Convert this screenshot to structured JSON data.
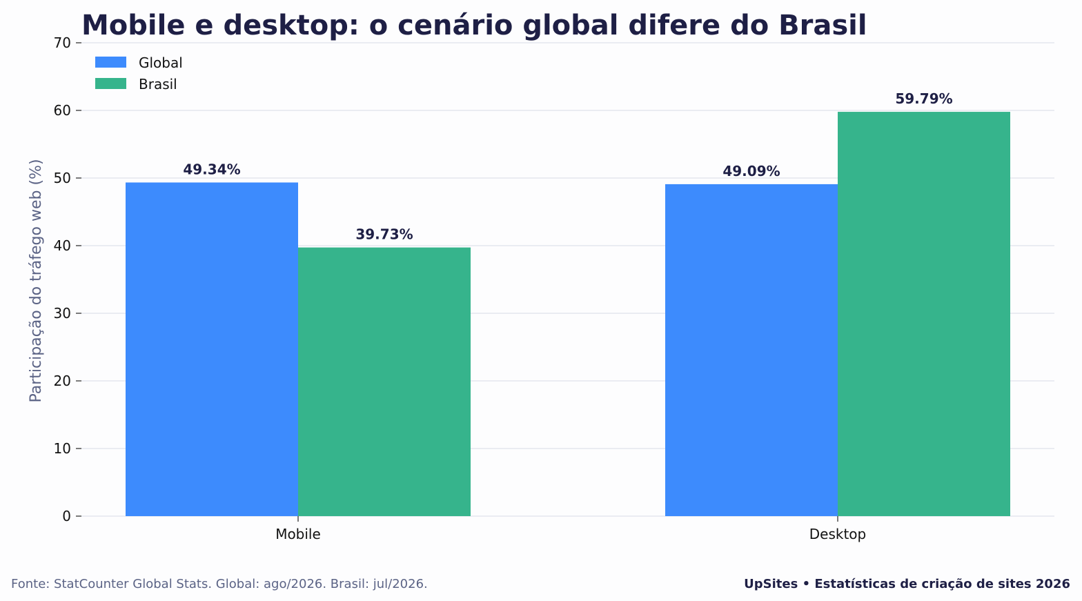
{
  "colors": {
    "background": "#fdfdfe",
    "global": "#3d8bfd",
    "brasil": "#36b48c",
    "grid": "#e3e6ee",
    "title": "#1e1f45",
    "muted": "#5b6385"
  },
  "chart_data": {
    "type": "bar",
    "title": "Mobile e desktop: o cenário global difere do Brasil",
    "xlabel": "",
    "ylabel": "Participação do tráfego web (%)",
    "categories": [
      "Mobile",
      "Desktop"
    ],
    "series": [
      {
        "name": "Global",
        "values": [
          49.34,
          49.09
        ],
        "labels": [
          "49.34%",
          "49.09%"
        ]
      },
      {
        "name": "Brasil",
        "values": [
          39.73,
          59.79
        ],
        "labels": [
          "39.73%",
          "59.79%"
        ]
      }
    ],
    "ylim": [
      0,
      70
    ],
    "yticks": [
      0,
      10,
      20,
      30,
      40,
      50,
      60,
      70
    ],
    "ytick_labels": [
      "0",
      "10",
      "20",
      "30",
      "40",
      "50",
      "60",
      "70"
    ],
    "grid": true,
    "legend_position": "top-left"
  },
  "footer": {
    "source": "Fonte: StatCounter Global Stats. Global: ago/2026. Brasil: jul/2026.",
    "brand": "UpSites • Estatísticas de criação de sites 2026"
  }
}
